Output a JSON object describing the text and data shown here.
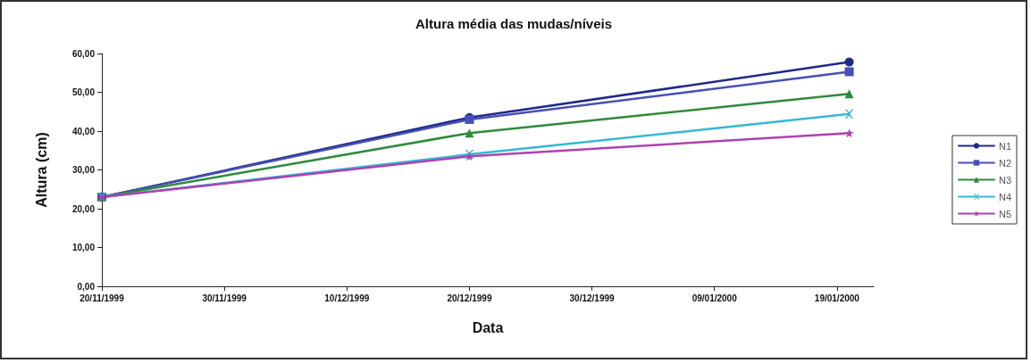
{
  "chart_data": {
    "type": "line",
    "title": "Altura média das mudas/níveis",
    "xlabel": "Data",
    "ylabel": "Altura (cm)",
    "x": [
      "1999-11-20",
      "1999-12-20",
      "2000-01-20"
    ],
    "series": [
      {
        "name": "N1",
        "color": "#1f2a8a",
        "marker": "circle",
        "values": [
          23,
          43.5,
          57.8
        ]
      },
      {
        "name": "N2",
        "color": "#4650b4",
        "marker": "square",
        "values": [
          23,
          43,
          55.3
        ]
      },
      {
        "name": "N3",
        "color": "#2e8b3a",
        "marker": "triangle",
        "values": [
          23,
          39.5,
          49.6
        ]
      },
      {
        "name": "N4",
        "color": "#35b8d8",
        "marker": "cross",
        "values": [
          23,
          34,
          44.4
        ]
      },
      {
        "name": "N5",
        "color": "#b040b0",
        "marker": "star",
        "values": [
          23,
          33.5,
          39.5
        ]
      }
    ],
    "xlim": [
      "1999-11-20",
      "2000-01-22"
    ],
    "xticks": [
      {
        "value": "1999-11-20",
        "label": "20/11/1999"
      },
      {
        "value": "1999-11-30",
        "label": "30/11/1999"
      },
      {
        "value": "1999-12-10",
        "label": "10/12/1999"
      },
      {
        "value": "1999-12-20",
        "label": "20/12/1999"
      },
      {
        "value": "1999-12-30",
        "label": "30/12/1999"
      },
      {
        "value": "2000-01-09",
        "label": "09/01/2000"
      },
      {
        "value": "2000-01-19",
        "label": "19/01/2000"
      }
    ],
    "ylim": [
      0,
      60
    ],
    "yticks": [
      {
        "value": 0,
        "label": "0,00"
      },
      {
        "value": 10,
        "label": "10,00"
      },
      {
        "value": 20,
        "label": "20,00"
      },
      {
        "value": 30,
        "label": "30,00"
      },
      {
        "value": 40,
        "label": "40,00"
      },
      {
        "value": 50,
        "label": "50,00"
      },
      {
        "value": 60,
        "label": "60,00"
      }
    ],
    "grid": false,
    "legend": "right",
    "line_style": "solid"
  }
}
